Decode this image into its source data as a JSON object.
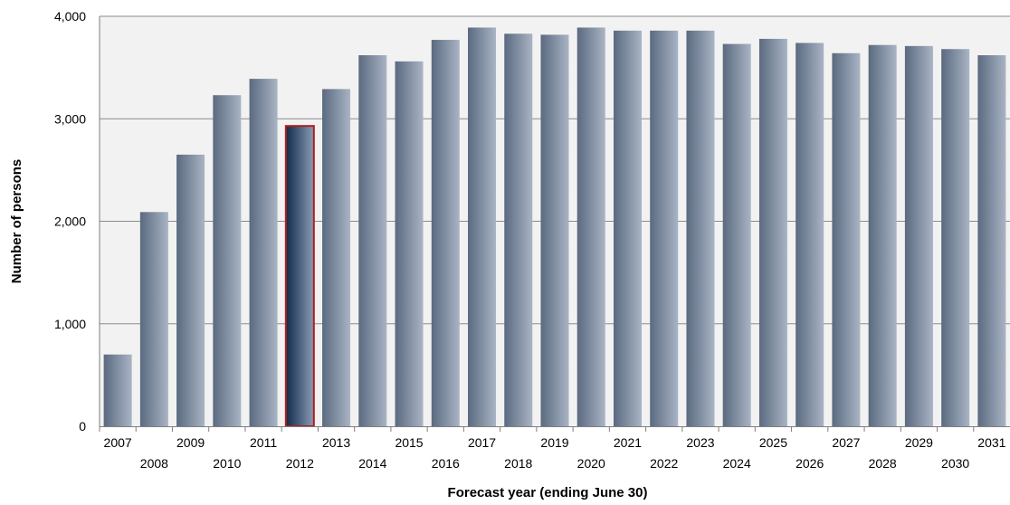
{
  "chart_data": {
    "type": "bar",
    "xlabel": "Forecast year (ending June 30)",
    "ylabel": "Number of persons",
    "ylim": [
      0,
      4000
    ],
    "yticks": [
      0,
      1000,
      2000,
      3000,
      4000
    ],
    "ytick_labels": [
      "0",
      "1,000",
      "2,000",
      "3,000",
      "4,000"
    ],
    "grid": true,
    "categories": [
      "2007",
      "2008",
      "2009",
      "2010",
      "2011",
      "2012",
      "2013",
      "2014",
      "2015",
      "2016",
      "2017",
      "2018",
      "2019",
      "2020",
      "2021",
      "2022",
      "2023",
      "2024",
      "2025",
      "2026",
      "2027",
      "2028",
      "2029",
      "2030",
      "2031"
    ],
    "values": [
      700,
      2090,
      2650,
      3230,
      3390,
      2930,
      3290,
      3620,
      3560,
      3770,
      3890,
      3830,
      3820,
      3890,
      3860,
      3860,
      3860,
      3730,
      3780,
      3740,
      3640,
      3720,
      3710,
      3680,
      3620
    ],
    "highlighted_category": "2012",
    "colors": {
      "bar_dark": "#5a6a80",
      "bar_light": "#a9b4c4",
      "highlight_dark": "#0f2a4a",
      "highlight_light": "#8a9cb5",
      "highlight_border": "#b01e1e",
      "plot_background": "#f2f2f2",
      "gridline": "#8c8c8c"
    }
  }
}
